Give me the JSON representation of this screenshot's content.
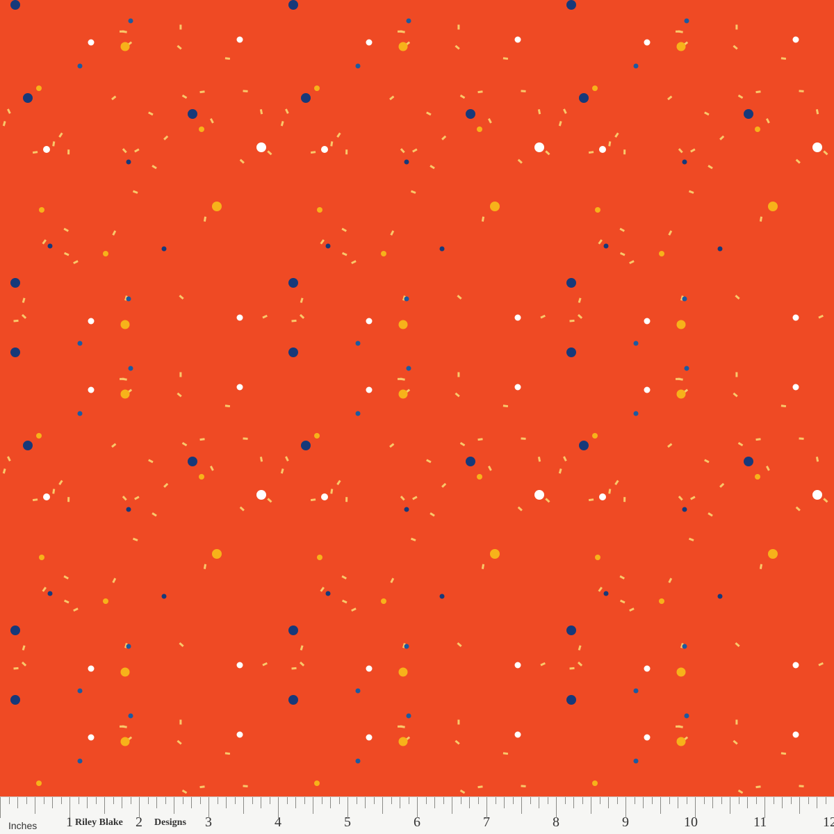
{
  "fabric": {
    "background_color": "#ef4a24",
    "dot_colors": {
      "navy": "#17397a",
      "blue": "#1d5aa0",
      "white": "#ffffff",
      "gold": "#f7b21a",
      "sprinkle": "#f9c86a"
    }
  },
  "ruler": {
    "unit_label": "Inches",
    "brand_part1": "Riley Blake",
    "brand_part2": "Designs",
    "numbers": [
      "1",
      "2",
      "3",
      "4",
      "5",
      "6",
      "7",
      "8",
      "9",
      "10",
      "11",
      "12"
    ]
  }
}
